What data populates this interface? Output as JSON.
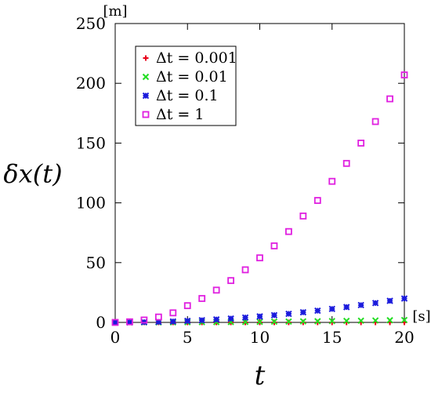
{
  "chart_data": {
    "type": "scatter",
    "xlabel": "t",
    "ylabel": "δx(t)",
    "x_unit": "[s]",
    "y_unit": "[m]",
    "xlim": [
      0,
      20
    ],
    "ylim": [
      0,
      250
    ],
    "xticks": [
      0,
      5,
      10,
      15,
      20
    ],
    "yticks": [
      0,
      50,
      100,
      150,
      200,
      250
    ],
    "grid": false,
    "legend_position": "top-left",
    "series": [
      {
        "name": "Δt = 0.001",
        "marker": "plus",
        "color": "#e8001a",
        "x": [
          0,
          1,
          2,
          3,
          4,
          5,
          6,
          7,
          8,
          9,
          10,
          11,
          12,
          13,
          14,
          15,
          16,
          17,
          18,
          19,
          20
        ],
        "y": [
          0,
          0,
          0,
          0,
          0,
          0,
          0,
          0,
          0,
          0,
          0,
          0,
          0,
          0,
          0,
          0,
          0,
          0,
          0,
          0,
          0.02
        ]
      },
      {
        "name": "Δt = 0.01",
        "marker": "cross",
        "color": "#22dd22",
        "x": [
          0,
          1,
          2,
          3,
          4,
          5,
          6,
          7,
          8,
          9,
          10,
          11,
          12,
          13,
          14,
          15,
          16,
          17,
          18,
          19,
          20
        ],
        "y": [
          0,
          0.005,
          0.02,
          0.05,
          0.08,
          0.13,
          0.18,
          0.25,
          0.32,
          0.41,
          0.5,
          0.61,
          0.72,
          0.85,
          0.98,
          1.13,
          1.28,
          1.45,
          1.62,
          1.81,
          2.0
        ]
      },
      {
        "name": "Δt = 0.1",
        "marker": "star",
        "color": "#1a1adc",
        "x": [
          0,
          1,
          2,
          3,
          4,
          5,
          6,
          7,
          8,
          9,
          10,
          11,
          12,
          13,
          14,
          15,
          16,
          17,
          18,
          19,
          20
        ],
        "y": [
          0,
          0.05,
          0.2,
          0.45,
          0.8,
          1.25,
          1.8,
          2.45,
          3.2,
          4.05,
          5.0,
          6.05,
          7.2,
          8.45,
          9.8,
          11.25,
          12.8,
          14.45,
          16.2,
          18.05,
          20.0
        ]
      },
      {
        "name": "Δt = 1",
        "marker": "open-square",
        "color": "#e020e0",
        "x": [
          0,
          1,
          2,
          3,
          4,
          5,
          6,
          7,
          8,
          9,
          10,
          11,
          12,
          13,
          14,
          15,
          16,
          17,
          18,
          19,
          20
        ],
        "y": [
          0,
          0.5,
          2.0,
          4.5,
          8.0,
          14,
          20,
          27,
          35,
          44,
          54,
          64,
          76,
          89,
          102,
          118,
          133,
          150,
          168,
          187,
          207
        ]
      }
    ]
  }
}
